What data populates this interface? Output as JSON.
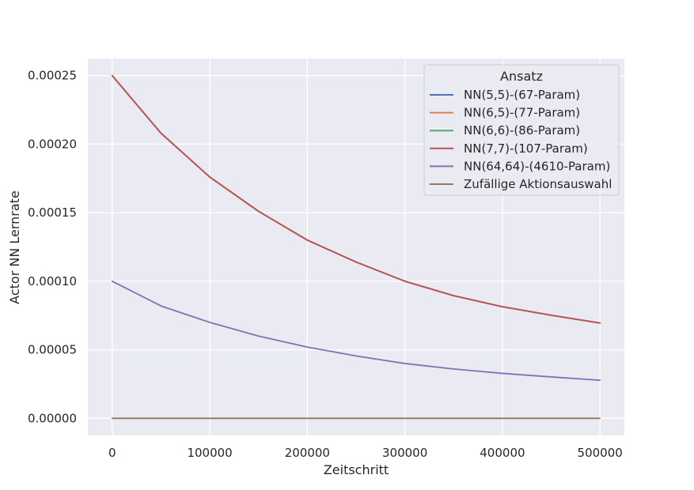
{
  "chart_data": {
    "type": "line",
    "title": "",
    "xlabel": "Zeitschritt",
    "ylabel": "Actor NN Lernrate",
    "xlim": [
      -25000,
      525000
    ],
    "ylim": [
      -1.25e-05,
      0.0002625
    ],
    "xticks": [
      0,
      100000,
      200000,
      300000,
      400000,
      500000
    ],
    "xtick_labels": [
      "0",
      "100000",
      "200000",
      "300000",
      "400000",
      "500000"
    ],
    "yticks": [
      0.0,
      5e-05,
      0.0001,
      0.00015,
      0.0002,
      0.00025
    ],
    "ytick_labels": [
      "0.00000",
      "0.00005",
      "0.00010",
      "0.00015",
      "0.00020",
      "0.00025"
    ],
    "grid": true,
    "background": "#eaeaf2",
    "legend": {
      "title": "Ansatz",
      "placement": "top-right"
    },
    "x": [
      0,
      50000,
      100000,
      150000,
      200000,
      250000,
      300000,
      350000,
      400000,
      450000,
      500000
    ],
    "series": [
      {
        "name": "NN(5,5)-(67-Param)",
        "color": "#4c72b0",
        "values": [
          0.00025,
          0.000208,
          0.000176,
          0.000151,
          0.00013,
          0.000114,
          0.0001,
          8.95e-05,
          8.14e-05,
          7.52e-05,
          6.95e-05
        ]
      },
      {
        "name": "NN(6,5)-(77-Param)",
        "color": "#dd8452",
        "values": [
          0.00025,
          0.000208,
          0.000176,
          0.000151,
          0.00013,
          0.000114,
          0.0001,
          8.95e-05,
          8.14e-05,
          7.52e-05,
          6.95e-05
        ]
      },
      {
        "name": "NN(6,6)-(86-Param)",
        "color": "#55a868",
        "values": [
          0.00025,
          0.000208,
          0.000176,
          0.000151,
          0.00013,
          0.000114,
          0.0001,
          8.95e-05,
          8.14e-05,
          7.52e-05,
          6.95e-05
        ]
      },
      {
        "name": "NN(7,7)-(107-Param)",
        "color": "#c44e52",
        "values": [
          0.00025,
          0.000208,
          0.000176,
          0.000151,
          0.00013,
          0.000114,
          0.0001,
          8.95e-05,
          8.14e-05,
          7.52e-05,
          6.95e-05
        ]
      },
      {
        "name": "NN(64,64)-(4610-Param)",
        "color": "#8172b3",
        "values": [
          0.0001,
          8.2e-05,
          7e-05,
          6e-05,
          5.2e-05,
          4.55e-05,
          4e-05,
          3.6e-05,
          3.28e-05,
          3.02e-05,
          2.78e-05
        ]
      },
      {
        "name": "Zufällige Aktionsauswahl",
        "color": "#937860",
        "values": [
          0,
          0,
          0,
          0,
          0,
          0,
          0,
          0,
          0,
          0,
          0
        ]
      }
    ]
  }
}
